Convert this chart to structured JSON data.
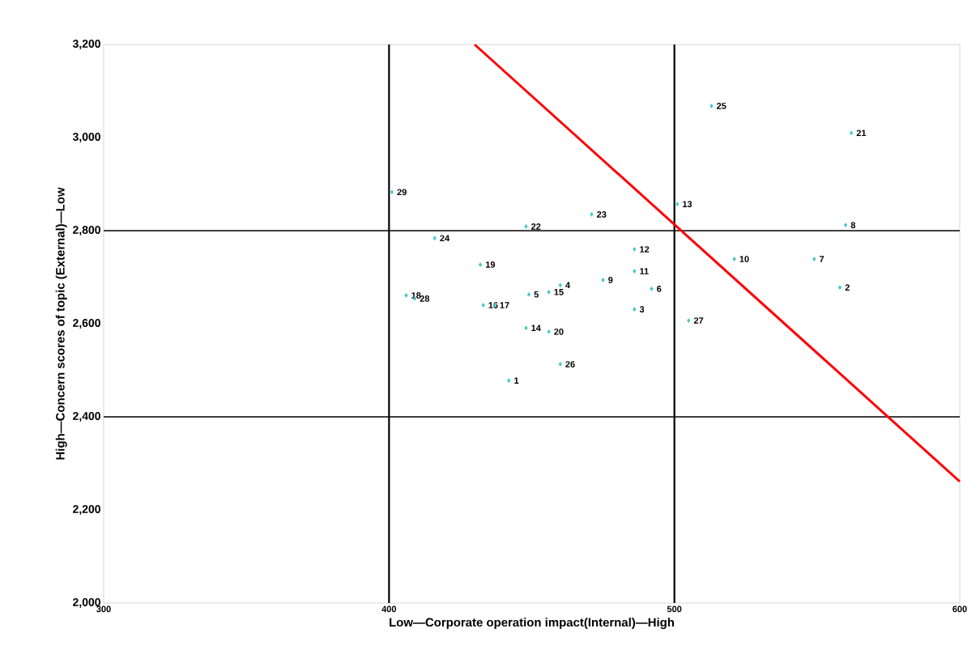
{
  "chart_data": {
    "type": "scatter",
    "xlabel": "Low—Corporate operation impact(Internal)—High",
    "ylabel": "High—Concern scores of topic (External)—Low",
    "xlim": [
      300,
      600
    ],
    "xticks": [
      300,
      400,
      500,
      600
    ],
    "ylim": [
      2000,
      3200
    ],
    "yticks": [
      {
        "value": 2000,
        "label": "2,000"
      },
      {
        "value": 2200,
        "label": "2,200"
      },
      {
        "value": 2400,
        "label": "2,400"
      },
      {
        "value": 2600,
        "label": "2,600"
      },
      {
        "value": 2800,
        "label": "2,800"
      },
      {
        "value": 3000,
        "label": "3,000"
      },
      {
        "value": 3200,
        "label": "3,200"
      }
    ],
    "grid": false,
    "series": [
      {
        "color": "#3cc8c8",
        "marker": "diamond",
        "x": [
          442,
          558,
          486,
          460,
          449,
          492,
          549,
          560,
          475,
          521,
          486,
          486,
          501,
          448,
          456,
          433,
          437,
          406,
          432,
          456,
          562,
          448,
          471,
          416,
          513,
          460,
          505,
          409,
          401
        ],
        "values": [
          2478,
          2678,
          2631,
          2683,
          2663,
          2675,
          2739,
          2812,
          2694,
          2739,
          2713,
          2760,
          2857,
          2591,
          2668,
          2640,
          2640,
          2661,
          2727,
          2583,
          3010,
          2809,
          2835,
          2784,
          3068,
          2513,
          2607,
          2654,
          2883
        ]
      },
      {
        "type": "line",
        "color": "#ff0000",
        "marker": "none",
        "line_style": "solid",
        "x": [
          430,
          600
        ],
        "values": [
          3200,
          2261
        ]
      }
    ],
    "annotations": [
      {
        "text": "1",
        "x": 442,
        "y": 2478
      },
      {
        "text": "2",
        "x": 558,
        "y": 2678
      },
      {
        "text": "3",
        "x": 486,
        "y": 2631
      },
      {
        "text": "4",
        "x": 460,
        "y": 2683
      },
      {
        "text": "5",
        "x": 449,
        "y": 2663
      },
      {
        "text": "6",
        "x": 492,
        "y": 2675
      },
      {
        "text": "7",
        "x": 549,
        "y": 2739
      },
      {
        "text": "8",
        "x": 560,
        "y": 2812
      },
      {
        "text": "9",
        "x": 475,
        "y": 2694
      },
      {
        "text": "10",
        "x": 521,
        "y": 2739
      },
      {
        "text": "11",
        "x": 486,
        "y": 2713
      },
      {
        "text": "12",
        "x": 486,
        "y": 2760
      },
      {
        "text": "13",
        "x": 501,
        "y": 2857
      },
      {
        "text": "14",
        "x": 448,
        "y": 2591
      },
      {
        "text": "15",
        "x": 456,
        "y": 2668
      },
      {
        "text": "16",
        "x": 433,
        "y": 2640
      },
      {
        "text": "17",
        "x": 437,
        "y": 2640
      },
      {
        "text": "18",
        "x": 406,
        "y": 2661
      },
      {
        "text": "19",
        "x": 432,
        "y": 2727
      },
      {
        "text": "20",
        "x": 456,
        "y": 2583
      },
      {
        "text": "21",
        "x": 562,
        "y": 3010
      },
      {
        "text": "22",
        "x": 448,
        "y": 2809
      },
      {
        "text": "23",
        "x": 471,
        "y": 2835
      },
      {
        "text": "24",
        "x": 416,
        "y": 2784
      },
      {
        "text": "25",
        "x": 513,
        "y": 3068
      },
      {
        "text": "26",
        "x": 460,
        "y": 2513
      },
      {
        "text": "27",
        "x": 505,
        "y": 2607
      },
      {
        "text": "28",
        "x": 409,
        "y": 2654
      },
      {
        "text": "29",
        "x": 401,
        "y": 2883
      }
    ],
    "ref_lines": [
      {
        "axis": "x",
        "value": 400,
        "color": "#000000"
      },
      {
        "axis": "x",
        "value": 500,
        "color": "#000000"
      },
      {
        "axis": "y",
        "value": 2400,
        "color": "#000000"
      },
      {
        "axis": "y",
        "value": 2800,
        "color": "#000000"
      }
    ]
  }
}
